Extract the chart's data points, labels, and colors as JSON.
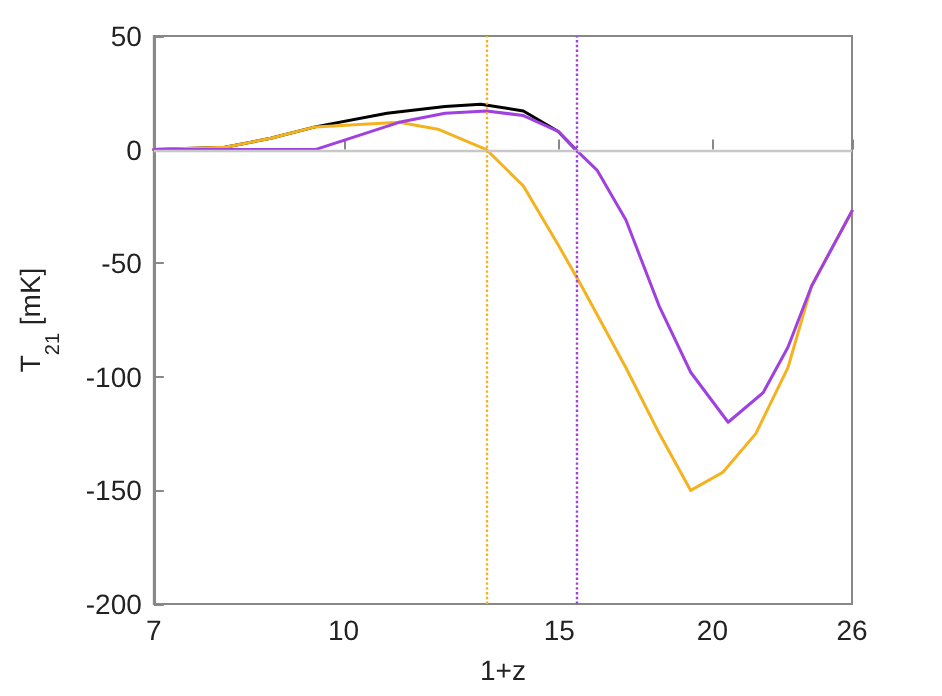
{
  "chart_data": {
    "type": "line",
    "xlabel": "1+z",
    "ylabel": "T$_{21}$ [mK]",
    "log": "x",
    "xlim": [
      7,
      26
    ],
    "xticks": [
      7,
      10,
      15,
      20,
      26
    ],
    "ylim": [
      -200,
      50
    ],
    "yticks": [
      -200,
      -150,
      -100,
      -50,
      0,
      50
    ],
    "marker": "none",
    "line_style": "solid",
    "series": [
      {
        "color": "#000000",
        "x": [
          7,
          8.0,
          8.72,
          9.48,
          10.85,
          12.1,
          12.94,
          14.02,
          14.97,
          15.47
        ],
        "values": [
          0,
          1,
          5,
          10,
          16,
          19,
          20,
          17,
          8,
          0
        ]
      },
      {
        "color": "#f5b21f",
        "x": [
          7,
          8.0,
          8.72,
          9.48,
          11.1,
          11.94,
          13.08,
          14.02,
          14.97,
          15.64,
          17.0,
          18.1,
          19.2,
          20.4,
          21.7,
          23.05,
          24.1,
          26
        ],
        "values": [
          0,
          1,
          5,
          10,
          12,
          9,
          0,
          -16,
          -42,
          -60,
          -96,
          -125,
          -150,
          -142,
          -125,
          -96,
          -60,
          -27
        ]
      },
      {
        "color": "#a040e0",
        "x": [
          7,
          9.48,
          11.1,
          12.1,
          13.08,
          14.02,
          14.97,
          15.47,
          16.1,
          17.0,
          18.1,
          19.2,
          20.6,
          22.0,
          23.05,
          24.1,
          26
        ],
        "values": [
          0,
          0,
          12,
          16,
          17,
          15,
          8,
          0,
          -9,
          -31,
          -69,
          -98,
          -120,
          -107,
          -87,
          -60,
          -27
        ]
      }
    ],
    "ref_lines": [
      {
        "axis": "y",
        "value": 0,
        "color": "#c8c8c8",
        "line_style": "solid"
      },
      {
        "axis": "x",
        "value": 13.1,
        "color": "#f5b21f",
        "line_style": "dotted"
      },
      {
        "axis": "x",
        "value": 15.5,
        "color": "#a040e0",
        "line_style": "dotted"
      }
    ]
  }
}
